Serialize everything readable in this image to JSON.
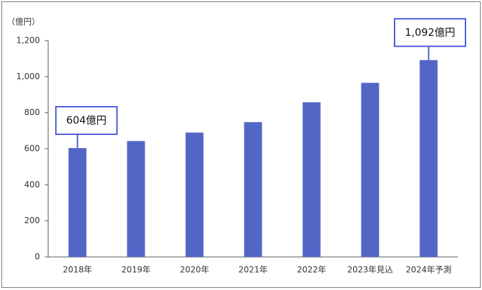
{
  "chart_data": {
    "type": "bar",
    "y_label": "（億円）",
    "categories": [
      "2018年",
      "2019年",
      "2020年",
      "2021年",
      "2022年",
      "2023年見込",
      "2024年予測"
    ],
    "values": [
      604,
      643,
      690,
      748,
      858,
      966,
      1092
    ],
    "value_labels": [
      "604億円",
      null,
      null,
      null,
      null,
      null,
      "1,092億円"
    ],
    "color": "#5366c6",
    "label_box_color": "#4a5bd6",
    "ylim": [
      0,
      1200
    ],
    "yticks": [
      0,
      200,
      400,
      600,
      800,
      {
        "value": 1000,
        "label": "1,000"
      },
      {
        "value": 1200,
        "label": "1,200"
      }
    ],
    "grid": false
  }
}
